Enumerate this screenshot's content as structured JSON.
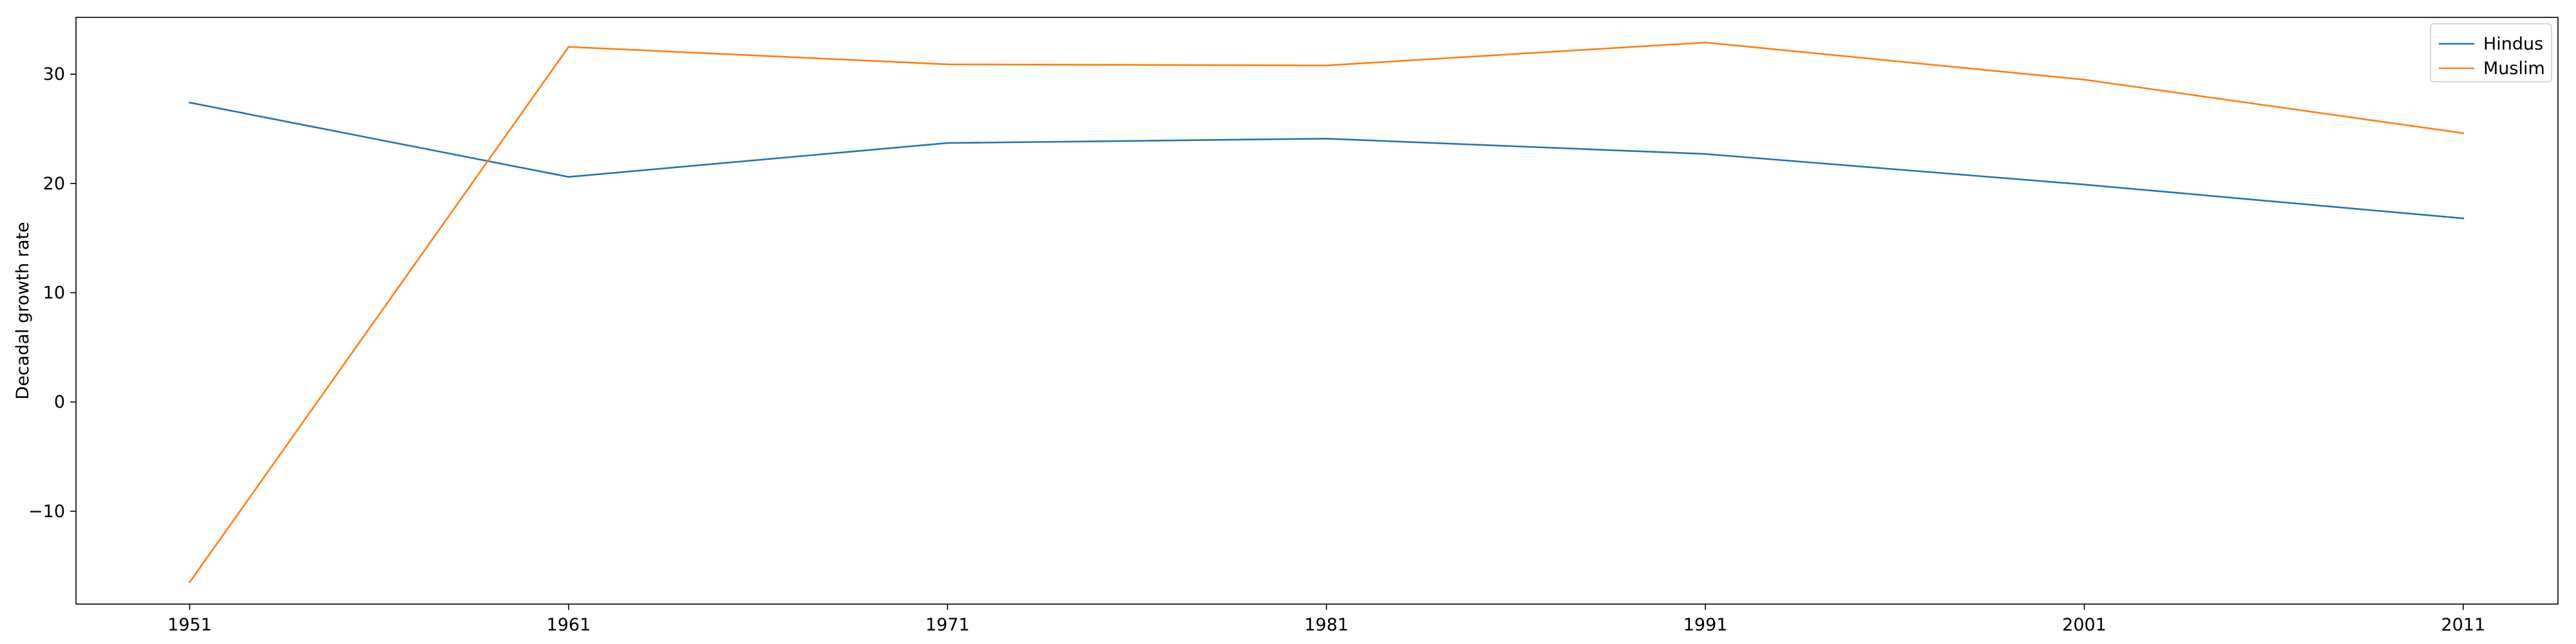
{
  "chart_data": {
    "type": "line",
    "title": "",
    "xlabel": "",
    "ylabel": "Decadal growth rate",
    "x": [
      1951,
      1961,
      1971,
      1981,
      1991,
      2001,
      2011
    ],
    "xlim": [
      1948,
      2013.5
    ],
    "ylim": [
      -18.5,
      35.2
    ],
    "yticks": [
      -10,
      0,
      10,
      20,
      30
    ],
    "grid": false,
    "legend_position": "top-right",
    "series": [
      {
        "name": "Hindus",
        "color": "#1f77b4",
        "values": [
          27.4,
          20.6,
          23.7,
          24.1,
          22.7,
          19.9,
          16.8
        ]
      },
      {
        "name": "Muslim",
        "color": "#ff7f0e",
        "values": [
          -16.5,
          32.5,
          30.9,
          30.8,
          32.9,
          29.5,
          24.6
        ]
      }
    ]
  }
}
